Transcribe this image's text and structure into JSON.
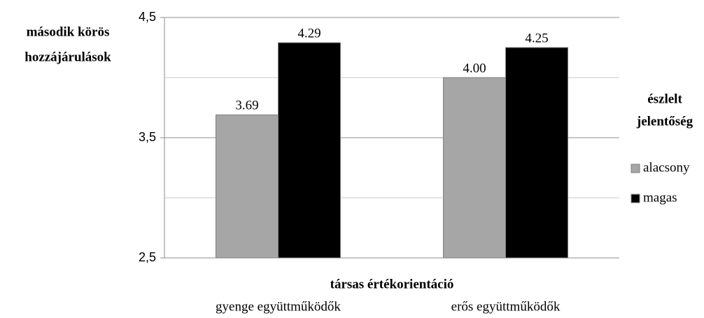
{
  "chart_data": {
    "type": "bar",
    "y_label": [
      "második körös",
      "hozzájárulások"
    ],
    "x_label": "társas értékorientáció",
    "legend_title": [
      "észlelt",
      "jelentőség"
    ],
    "legend": "right",
    "categories": [
      "gyenge együttműködők",
      "erős együttműködők"
    ],
    "series": [
      {
        "name": "alacsony",
        "color": "#a6a6a6",
        "values": [
          3.69,
          4.0
        ],
        "value_labels": [
          "3.69",
          "4.00"
        ]
      },
      {
        "name": "magas",
        "color": "#000000",
        "values": [
          4.29,
          4.25
        ],
        "value_labels": [
          "4.29",
          "4.25"
        ]
      }
    ],
    "ylim": [
      2.5,
      4.5
    ],
    "yticks": [
      {
        "value": 2.5,
        "label": "2,5"
      },
      {
        "value": 3.5,
        "label": "3,5"
      },
      {
        "value": 4.5,
        "label": "4,5"
      }
    ],
    "minor_grid": [
      3,
      4
    ],
    "grid": true
  }
}
